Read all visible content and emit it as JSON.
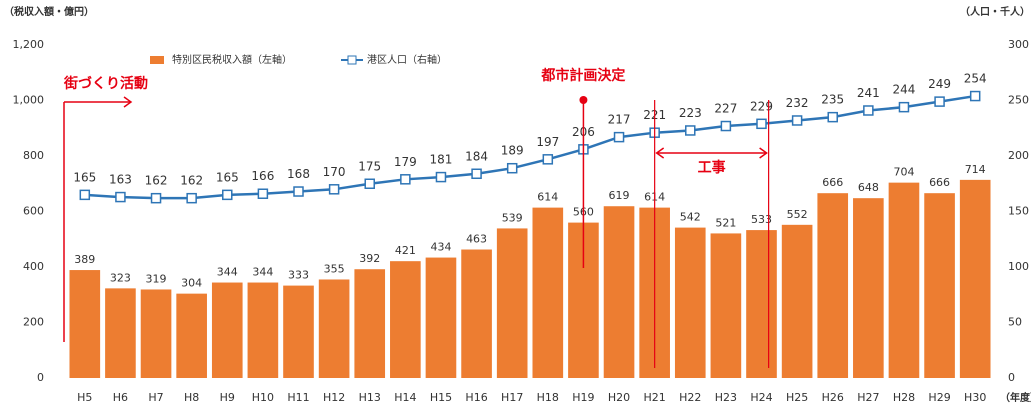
{
  "chart_data": {
    "type": "bar_line",
    "ylabel": "（税収入額・億円）",
    "y2label": "（人口・千人）",
    "xlabel": "（年度）",
    "categories": [
      "H5",
      "H6",
      "H7",
      "H8",
      "H9",
      "H10",
      "H11",
      "H12",
      "H13",
      "H14",
      "H15",
      "H16",
      "H17",
      "H18",
      "H19",
      "H20",
      "H21",
      "H22",
      "H23",
      "H24",
      "H25",
      "H26",
      "H27",
      "H28",
      "H29",
      "H30"
    ],
    "series": [
      {
        "name": "特別区民税収入額（左軸）",
        "color": "#ed7d31",
        "kind": "bar",
        "values": [
          389,
          323,
          319,
          304,
          344,
          344,
          333,
          355,
          392,
          421,
          434,
          463,
          539,
          614,
          560,
          619,
          614,
          542,
          521,
          533,
          552,
          666,
          648,
          704,
          666,
          714
        ]
      },
      {
        "name": "港区人口（右軸）",
        "color": "#2e75b6",
        "kind": "line",
        "axis": "y2",
        "values": [
          165,
          163,
          162,
          162,
          165,
          166,
          168,
          170,
          175,
          179,
          181,
          184,
          189,
          197,
          206,
          217,
          221,
          223,
          227,
          229,
          232,
          235,
          241,
          244,
          249,
          254
        ]
      }
    ],
    "ylim": [
      0,
      1200
    ],
    "yticks": [
      0,
      200,
      400,
      600,
      800,
      {
        "value": 1000,
        "label": "1,000"
      },
      {
        "value": 1200,
        "label": "1,200"
      }
    ],
    "y2lim": [
      0,
      300
    ],
    "y2ticks": [
      0,
      50,
      100,
      150,
      200,
      250,
      300
    ],
    "annotations": [
      "街づくり活動",
      "都市計画決定",
      "工事"
    ],
    "annotation_color": "#e60012"
  }
}
